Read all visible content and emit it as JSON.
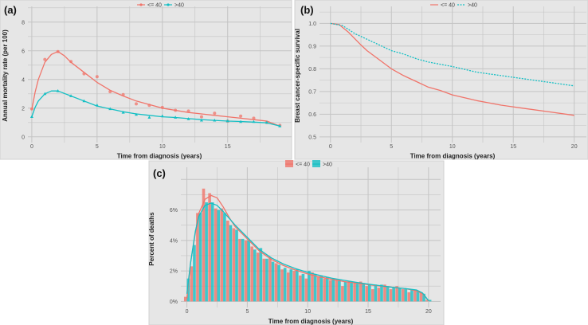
{
  "colors": {
    "le40": "#f0746a",
    "gt40": "#14bfc4",
    "panel_bg": "#e6e6e6",
    "grid": "#c4c4c4"
  },
  "chart_data": [
    {
      "panel": "(a)",
      "type": "scatter+line",
      "xlabel": "Time from diagnosis (years)",
      "ylabel": "Annual mortality rate (per 100)",
      "xlim": [
        -0.3,
        19.9
      ],
      "ylim": [
        -0.4,
        9.1
      ],
      "xticks": [
        0,
        5,
        10,
        15
      ],
      "yticks": [
        0,
        2,
        4,
        6,
        8
      ],
      "legend": [
        "<= 40",
        ">40"
      ],
      "legend_position": "top",
      "series": [
        {
          "name": "<= 40",
          "points_x": [
            0,
            1,
            2,
            3,
            4,
            5,
            6,
            7,
            8,
            9,
            10,
            11,
            12,
            13,
            14,
            15,
            16,
            17,
            18,
            19
          ],
          "points_y": [
            1.95,
            5.4,
            5.95,
            5.25,
            4.4,
            4.2,
            3.15,
            2.95,
            2.3,
            2.2,
            2.05,
            1.85,
            1.8,
            1.4,
            1.65,
            1.1,
            1.45,
            1.3,
            1.0,
            0.8
          ],
          "curve_x": [
            0,
            0.25,
            0.5,
            1,
            1.5,
            2,
            2.5,
            3,
            4,
            5,
            6,
            7,
            8,
            9,
            10,
            11,
            12,
            13,
            14,
            15,
            16,
            17,
            18,
            19
          ],
          "curve_y": [
            1.9,
            3.1,
            4.0,
            5.2,
            5.75,
            5.95,
            5.65,
            5.2,
            4.5,
            3.8,
            3.25,
            2.85,
            2.5,
            2.25,
            2.0,
            1.85,
            1.7,
            1.6,
            1.5,
            1.4,
            1.3,
            1.2,
            1.1,
            0.75
          ]
        },
        {
          "name": ">40",
          "points_x": [
            0,
            1,
            2,
            3,
            4,
            5,
            6,
            7,
            8,
            9,
            10,
            11,
            12,
            13,
            14,
            15,
            16,
            17,
            18,
            19
          ],
          "points_y": [
            1.4,
            3.0,
            3.2,
            2.85,
            2.5,
            2.2,
            1.95,
            1.7,
            1.55,
            1.35,
            1.45,
            1.35,
            1.25,
            1.15,
            1.15,
            1.1,
            1.05,
            1.05,
            1.0,
            0.75
          ],
          "curve_x": [
            0,
            0.25,
            0.5,
            1,
            1.5,
            2,
            3,
            4,
            5,
            6,
            7,
            8,
            9,
            10,
            11,
            12,
            13,
            14,
            15,
            16,
            17,
            18,
            19
          ],
          "curve_y": [
            1.4,
            2.05,
            2.5,
            3.0,
            3.2,
            3.2,
            2.85,
            2.5,
            2.15,
            1.95,
            1.75,
            1.6,
            1.5,
            1.4,
            1.35,
            1.27,
            1.2,
            1.15,
            1.1,
            1.07,
            1.03,
            0.98,
            0.75
          ]
        }
      ]
    },
    {
      "panel": "(b)",
      "type": "line",
      "xlabel": "Time from diagnosis (years)",
      "ylabel": "Breast cancer-specific survival",
      "xlim": [
        -0.9,
        21
      ],
      "ylim": [
        0.475,
        1.075
      ],
      "xticks": [
        0,
        5,
        10,
        15,
        20
      ],
      "yticks": [
        0.5,
        0.6,
        0.7,
        0.8,
        0.9,
        1.0
      ],
      "legend": [
        "<= 40",
        ">40"
      ],
      "legend_position": "top",
      "series": [
        {
          "name": "<= 40",
          "style": "solid",
          "x": [
            0,
            0.7,
            1.5,
            2.5,
            3,
            4,
            5,
            6,
            7,
            8,
            9,
            10,
            12,
            14,
            16,
            18,
            20
          ],
          "y": [
            1.0,
            0.995,
            0.96,
            0.905,
            0.88,
            0.84,
            0.8,
            0.77,
            0.745,
            0.72,
            0.705,
            0.685,
            0.66,
            0.64,
            0.625,
            0.61,
            0.595
          ]
        },
        {
          "name": ">40",
          "style": "dashed",
          "x": [
            0,
            1,
            2,
            3,
            4,
            5,
            6,
            7,
            8,
            10,
            12,
            14,
            16,
            18,
            20
          ],
          "y": [
            1.0,
            0.99,
            0.955,
            0.93,
            0.905,
            0.88,
            0.865,
            0.845,
            0.83,
            0.81,
            0.785,
            0.77,
            0.755,
            0.74,
            0.725
          ]
        }
      ]
    },
    {
      "panel": "(c)",
      "type": "bar+line",
      "xlabel": "Time from diagnosis (years)",
      "ylabel": "Percent of deaths",
      "xlim": [
        -0.5,
        21
      ],
      "ylim": [
        -0.4,
        8.8
      ],
      "xticks": [
        0,
        5,
        10,
        15,
        20
      ],
      "yticks": [
        0,
        2,
        4,
        6
      ],
      "ytick_labels": [
        "0%",
        "2%",
        "4%",
        "6%"
      ],
      "legend": [
        "<= 40",
        ">40"
      ],
      "legend_position": "top",
      "bin_x": [
        0,
        0.5,
        1,
        1.5,
        2,
        2.5,
        3,
        3.5,
        4,
        4.5,
        5,
        5.5,
        6,
        6.5,
        7,
        7.5,
        8,
        8.5,
        9,
        9.5,
        10,
        10.5,
        11,
        11.5,
        12,
        12.5,
        13,
        13.5,
        14,
        14.5,
        15,
        15.5,
        16,
        16.5,
        17,
        17.5,
        18,
        18.5,
        19,
        19.5,
        20
      ],
      "series": [
        {
          "name": "<= 40",
          "values": [
            0.3,
            2.3,
            5.8,
            7.4,
            7.1,
            6.1,
            6.1,
            5.3,
            4.8,
            4.1,
            4.0,
            3.6,
            3.2,
            2.8,
            2.9,
            2.5,
            2.1,
            1.9,
            2.0,
            1.7,
            1.5,
            1.9,
            1.6,
            1.5,
            1.4,
            1.4,
            1.0,
            1.3,
            1.2,
            1.3,
            1.0,
            0.8,
            0.9,
            1.1,
            0.8,
            1.0,
            0.8,
            0.6,
            0.7,
            0.6,
            0.1
          ],
          "curve_x": [
            0,
            0.3,
            0.7,
            1,
            1.5,
            2,
            2.5,
            3,
            3.5,
            4,
            5,
            6,
            7,
            8,
            9,
            10,
            11,
            12,
            13,
            14,
            15,
            16,
            17,
            18,
            19,
            19.5,
            20
          ],
          "curve_y": [
            0.2,
            2.5,
            4.5,
            5.8,
            6.7,
            6.95,
            6.8,
            6.2,
            5.5,
            4.9,
            4.1,
            3.3,
            2.75,
            2.35,
            2.05,
            1.8,
            1.6,
            1.45,
            1.3,
            1.2,
            1.1,
            1.0,
            0.92,
            0.85,
            0.7,
            0.5,
            0.05
          ]
        },
        {
          "name": ">40",
          "values": [
            1.5,
            3.7,
            5.8,
            6.5,
            6.5,
            6.0,
            5.8,
            5.0,
            4.7,
            4.1,
            4.0,
            3.4,
            3.5,
            2.8,
            2.6,
            2.4,
            2.2,
            2.1,
            2.1,
            1.8,
            2.0,
            1.8,
            1.7,
            1.6,
            1.5,
            1.4,
            1.3,
            1.3,
            1.2,
            1.2,
            1.1,
            1.1,
            1.1,
            1.0,
            0.9,
            0.9,
            0.8,
            0.8,
            0.7,
            0.5,
            0.1
          ],
          "curve_x": [
            0,
            0.3,
            0.7,
            1,
            1.5,
            2,
            2.5,
            3,
            4,
            5,
            6,
            7,
            8,
            9,
            10,
            11,
            12,
            13,
            14,
            15,
            16,
            17,
            18,
            19,
            19.5,
            20
          ],
          "curve_y": [
            0.5,
            2.5,
            4.6,
            5.6,
            6.3,
            6.45,
            6.3,
            5.9,
            5.0,
            4.2,
            3.4,
            2.85,
            2.45,
            2.15,
            1.9,
            1.7,
            1.52,
            1.38,
            1.25,
            1.13,
            1.03,
            0.93,
            0.85,
            0.75,
            0.55,
            0.05
          ]
        }
      ]
    }
  ]
}
